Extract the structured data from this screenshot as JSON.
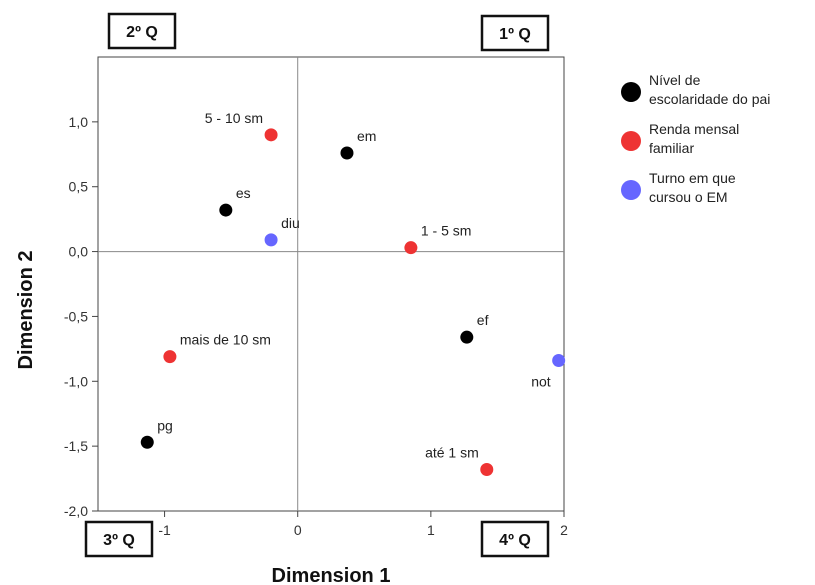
{
  "chart_data": {
    "type": "scatter",
    "xlabel": "Dimension 1",
    "ylabel": "Dimension 2",
    "xlim": [
      -1.5,
      2.0
    ],
    "ylim": [
      -2.0,
      1.5
    ],
    "x_ticks": [
      {
        "value": -1,
        "label": "-1"
      },
      {
        "value": 0,
        "label": "0"
      },
      {
        "value": 1,
        "label": "1"
      },
      {
        "value": 2,
        "label": "2"
      }
    ],
    "y_ticks": [
      {
        "value": 1.0,
        "label": "1,0"
      },
      {
        "value": 0.5,
        "label": "0,5"
      },
      {
        "value": 0.0,
        "label": "0,0"
      },
      {
        "value": -0.5,
        "label": "-0,5"
      },
      {
        "value": -1.0,
        "label": "-1,0"
      },
      {
        "value": -1.5,
        "label": "-1,5"
      },
      {
        "value": -2.0,
        "label": "-2,0"
      }
    ],
    "reference_lines": {
      "x": 0,
      "y": 0
    },
    "grid": false,
    "legend_position": "right",
    "quadrant_labels": [
      {
        "text": "2º Q",
        "corner": "top-left"
      },
      {
        "text": "1º Q",
        "corner": "top-right"
      },
      {
        "text": "3º Q",
        "corner": "bottom-left"
      },
      {
        "text": "4º Q",
        "corner": "bottom-right"
      }
    ],
    "series": [
      {
        "name": "Nível de escolaridade do pai",
        "legend_lines": [
          "Nível de",
          "escolaridade do pai"
        ],
        "color": "#000000",
        "points": [
          {
            "label": "em",
            "x": 0.37,
            "y": 0.76,
            "label_pos": "above-right"
          },
          {
            "label": "es",
            "x": -0.54,
            "y": 0.32,
            "label_pos": "above-right"
          },
          {
            "label": "ef",
            "x": 1.27,
            "y": -0.66,
            "label_pos": "above-right"
          },
          {
            "label": "pg",
            "x": -1.13,
            "y": -1.47,
            "label_pos": "above-right"
          }
        ]
      },
      {
        "name": "Renda mensal familiar",
        "legend_lines": [
          "Renda mensal",
          "familiar"
        ],
        "color": "#ee3333",
        "points": [
          {
            "label": "5 - 10 sm",
            "x": -0.2,
            "y": 0.9,
            "label_pos": "above-left"
          },
          {
            "label": "1 - 5 sm",
            "x": 0.85,
            "y": 0.03,
            "label_pos": "above-right"
          },
          {
            "label": "mais de 10 sm",
            "x": -0.96,
            "y": -0.81,
            "label_pos": "above-right"
          },
          {
            "label": "até 1 sm",
            "x": 1.42,
            "y": -1.68,
            "label_pos": "above-left"
          }
        ]
      },
      {
        "name": "Turno em que cursou o EM",
        "legend_lines": [
          "Turno em que",
          "cursou o EM"
        ],
        "color": "#6666ff",
        "points": [
          {
            "label": "diu",
            "x": -0.2,
            "y": 0.09,
            "label_pos": "above-right"
          },
          {
            "label": "not",
            "x": 1.96,
            "y": -0.84,
            "label_pos": "below-left"
          }
        ]
      }
    ]
  }
}
